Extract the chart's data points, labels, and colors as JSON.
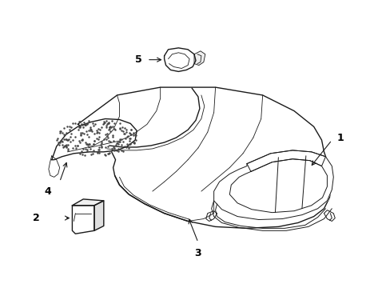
{
  "background_color": "#ffffff",
  "line_color": "#1a1a1a",
  "label_color": "#000000",
  "figsize": [
    4.89,
    3.6
  ],
  "dpi": 100,
  "lw_main": 1.0,
  "lw_thin": 0.6,
  "lw_wire": 0.7
}
